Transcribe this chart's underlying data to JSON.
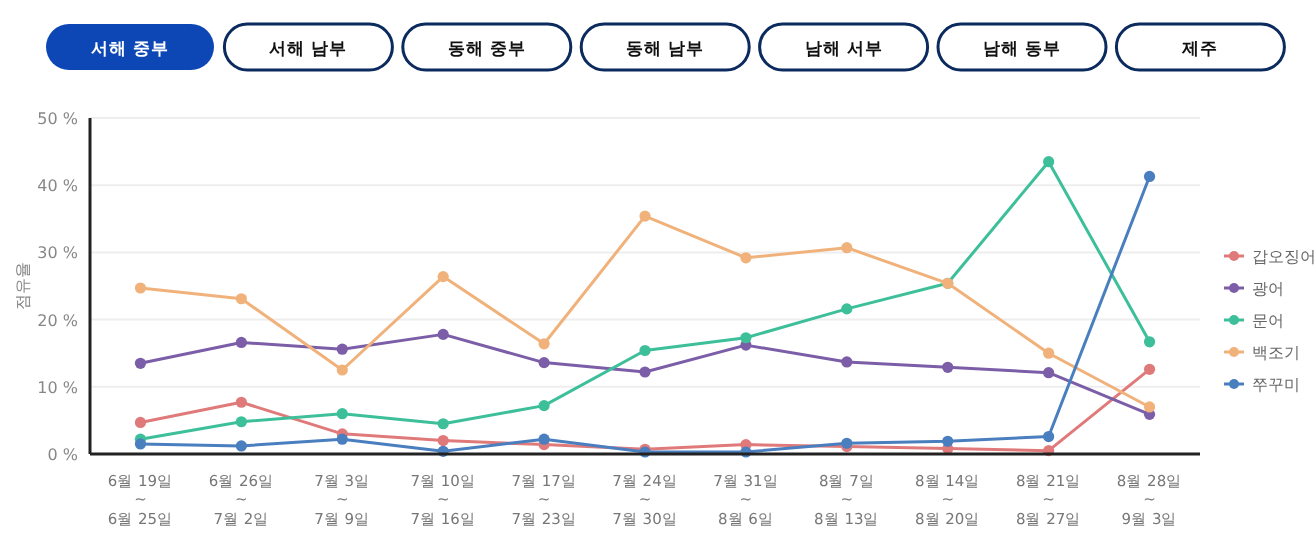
{
  "chart_data": {
    "type": "line",
    "ylabel": "점유율",
    "annotations": [
      "서해 중부",
      "서해 남부",
      "동해 중부",
      "동해 남부",
      "남해 서부",
      "남해 동부",
      "제주"
    ],
    "categories": [
      "6월 19일 ~ 6월 25일",
      "6월 26일 ~ 7월 2일",
      "7월 3일 ~ 7월 9일",
      "7월 10일 ~ 7월 16일",
      "7월 17일 ~ 7월 23일",
      "7월 24일 ~ 7월 30일",
      "7월 31일 ~ 8월 6일",
      "8월 7일 ~ 8월 13일",
      "8월 14일 ~ 8월 20일",
      "8월 21일 ~ 8월 27일",
      "8월 28일 ~ 9월 3일"
    ],
    "series": [
      {
        "name": "갑오징어",
        "color": "#e07a7a",
        "values": [
          4.7,
          7.7,
          3.0,
          2.0,
          1.4,
          0.7,
          1.4,
          1.1,
          0.8,
          0.5,
          12.6
        ]
      },
      {
        "name": "광어",
        "color": "#7b5ea7",
        "values": [
          13.5,
          16.6,
          15.6,
          17.8,
          13.6,
          12.2,
          16.2,
          13.7,
          12.9,
          12.1,
          5.9
        ]
      },
      {
        "name": "문어",
        "color": "#3dbf9a",
        "values": [
          2.2,
          4.8,
          6.0,
          4.5,
          7.2,
          15.4,
          17.3,
          21.6,
          25.4,
          43.5,
          16.7
        ]
      },
      {
        "name": "백조기",
        "color": "#f0b27a",
        "values": [
          24.7,
          23.1,
          12.5,
          26.4,
          16.4,
          35.4,
          29.2,
          30.7,
          25.4,
          15.0,
          7.0
        ]
      },
      {
        "name": "쭈꾸미",
        "color": "#4a7fbf",
        "values": [
          1.5,
          1.2,
          2.2,
          0.4,
          2.2,
          0.3,
          0.3,
          1.6,
          1.9,
          2.6,
          41.3
        ]
      }
    ],
    "ylim": [
      0,
      50
    ],
    "yticks": [
      {
        "value": 0,
        "label": "0 %"
      },
      {
        "value": 10,
        "label": "10 %"
      },
      {
        "value": 20,
        "label": "20 %"
      },
      {
        "value": 30,
        "label": "30 %"
      },
      {
        "value": 40,
        "label": "40 %"
      },
      {
        "value": 50,
        "label": "50 %"
      }
    ],
    "grid": "y",
    "legend": "right",
    "marker": "circle",
    "line_style": "solid"
  }
}
